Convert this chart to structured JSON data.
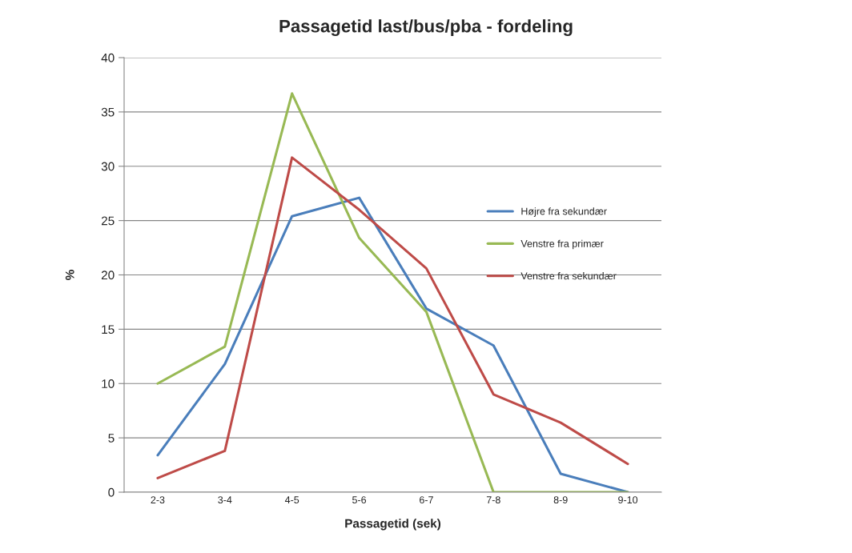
{
  "chart_data": {
    "type": "line",
    "title": "Passagetid last/bus/pba - fordeling",
    "xlabel": "Passagetid (sek)",
    "ylabel": "%",
    "categories": [
      "2-3",
      "3-4",
      "4-5",
      "5-6",
      "6-7",
      "7-8",
      "8-9",
      "9-10"
    ],
    "series": [
      {
        "name": "Højre fra sekundær",
        "color": "#4a7ebb",
        "values": [
          3.4,
          11.8,
          25.4,
          27.1,
          16.9,
          13.5,
          1.7,
          0
        ]
      },
      {
        "name": "Venstre fra primær",
        "color": "#98b954",
        "values": [
          10.0,
          13.4,
          36.7,
          23.4,
          16.6,
          0,
          0,
          0
        ]
      },
      {
        "name": "Venstre fra sekundær",
        "color": "#be4b48",
        "values": [
          1.3,
          3.8,
          30.8,
          26.0,
          20.6,
          9.0,
          6.4,
          2.6
        ]
      }
    ],
    "ylim": [
      0,
      40
    ],
    "yticks": [
      0,
      5,
      10,
      15,
      20,
      25,
      30,
      35,
      40
    ],
    "grid": "y",
    "legend": "right",
    "marker": "none",
    "line_style": "solid"
  }
}
